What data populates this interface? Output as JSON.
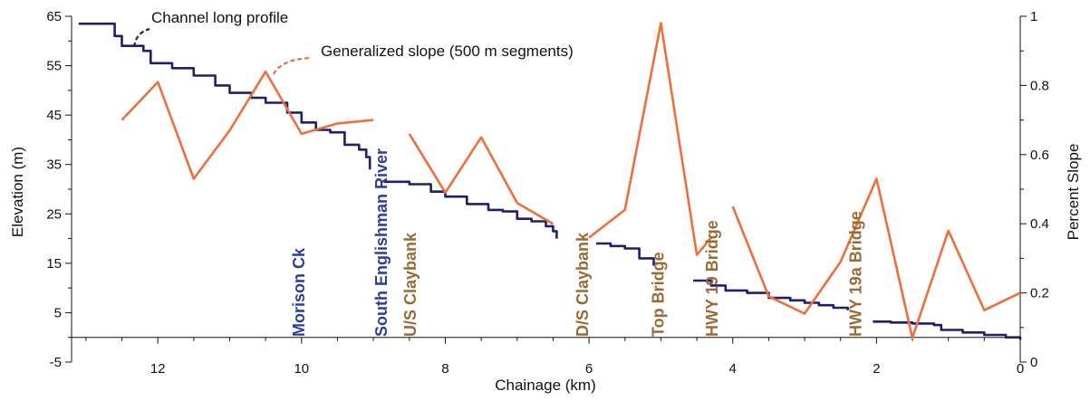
{
  "chart_data": {
    "type": "line",
    "xlabel": "Chainage (km)",
    "ylabel": "Elevation (m)",
    "y2label": "Percent Slope",
    "xlim": [
      13.2,
      0
    ],
    "ylim": [
      -5,
      65
    ],
    "y2lim": [
      0,
      1
    ],
    "x_ticks": [
      12,
      10,
      8,
      6,
      4,
      2,
      0
    ],
    "x_tick_labels": [
      "12",
      "10",
      "8",
      "6",
      "4",
      "2",
      "0"
    ],
    "y_ticks": [
      -5,
      5,
      15,
      25,
      35,
      45,
      55,
      65
    ],
    "y_tick_labels": [
      "-5",
      "5",
      "15",
      "25",
      "35",
      "45",
      "55",
      "65"
    ],
    "y2_ticks": [
      0,
      0.2,
      0.4,
      0.6,
      0.8,
      1
    ],
    "y2_tick_labels": [
      "0",
      "0.2",
      "0.4",
      "0.6",
      "0.8",
      "1"
    ],
    "grid": false,
    "legend_position": "top-left",
    "series": [
      {
        "name": "Channel long profile",
        "axis": "left",
        "color": "#1f1f6e",
        "segments": [
          [
            [
              13.1,
              63.5
            ],
            [
              12.6,
              61
            ],
            [
              12.5,
              59
            ],
            [
              12.2,
              58
            ],
            [
              12.1,
              55.5
            ],
            [
              11.8,
              54.5
            ],
            [
              11.5,
              53
            ],
            [
              11.2,
              51
            ],
            [
              11,
              49.5
            ],
            [
              10.7,
              48.5
            ],
            [
              10.5,
              47.5
            ],
            [
              10.2,
              45.5
            ],
            [
              10,
              43.5
            ],
            [
              9.8,
              42
            ],
            [
              9.6,
              41.5
            ],
            [
              9.4,
              39
            ],
            [
              9.2,
              38
            ],
            [
              9.1,
              36.5
            ],
            [
              9.05,
              34
            ]
          ],
          [
            [
              8.85,
              31.5
            ],
            [
              8.5,
              31
            ],
            [
              8.2,
              29.5
            ],
            [
              8,
              28.5
            ],
            [
              7.7,
              27
            ],
            [
              7.4,
              25.8
            ],
            [
              7.2,
              25.5
            ],
            [
              7,
              24
            ],
            [
              6.8,
              23.5
            ],
            [
              6.6,
              22.5
            ],
            [
              6.5,
              21.5
            ],
            [
              6.45,
              20
            ]
          ],
          [
            [
              5.9,
              19
            ],
            [
              5.7,
              18.5
            ],
            [
              5.5,
              18
            ],
            [
              5.3,
              16
            ],
            [
              5.1,
              14.5
            ]
          ],
          [
            [
              4.55,
              11.5
            ],
            [
              4.3,
              10.5
            ],
            [
              4.1,
              9.5
            ],
            [
              3.8,
              9
            ],
            [
              3.5,
              8
            ],
            [
              3.2,
              7.5
            ],
            [
              3,
              7
            ],
            [
              2.8,
              6.5
            ],
            [
              2.6,
              6
            ],
            [
              2.4,
              5.5
            ]
          ],
          [
            [
              2.05,
              3.2
            ],
            [
              1.8,
              3
            ],
            [
              1.5,
              2.8
            ],
            [
              1.2,
              2.5
            ],
            [
              1.1,
              1.5
            ],
            [
              0.8,
              1
            ],
            [
              0.5,
              0.5
            ],
            [
              0.2,
              0
            ],
            [
              0,
              -0.5
            ]
          ]
        ]
      },
      {
        "name": "Generalized slope (500 m segments)",
        "axis": "right",
        "color": "#ee6e3c",
        "segments": [
          [
            [
              12.5,
              0.7
            ],
            [
              12,
              0.81
            ],
            [
              11.5,
              0.53
            ],
            [
              11,
              0.67
            ],
            [
              10.5,
              0.84
            ],
            [
              10,
              0.66
            ],
            [
              9.5,
              0.69
            ],
            [
              9,
              0.7
            ]
          ],
          [
            [
              8.5,
              0.66
            ],
            [
              8,
              0.49
            ],
            [
              7.5,
              0.65
            ],
            [
              7,
              0.46
            ],
            [
              6.5,
              0.4
            ]
          ],
          [
            [
              6,
              0.36
            ],
            [
              5.5,
              0.44
            ],
            [
              5,
              0.98
            ],
            [
              4.5,
              0.31
            ],
            [
              4.3,
              0.36
            ]
          ],
          [
            [
              4,
              0.45
            ],
            [
              3.5,
              0.19
            ],
            [
              3,
              0.14
            ],
            [
              2.5,
              0.29
            ],
            [
              2,
              0.53
            ],
            [
              1.5,
              0.07
            ],
            [
              1,
              0.38
            ],
            [
              0.5,
              0.15
            ],
            [
              0,
              0.2
            ]
          ]
        ]
      }
    ],
    "annotations": [
      {
        "text": "Morison Ck",
        "x": 10.05,
        "color": "#2e3c9e"
      },
      {
        "text": "South Englishman River",
        "x": 8.9,
        "color": "#2e3c9e"
      },
      {
        "text": "U/S Claybank",
        "x": 8.5,
        "color": "#9a6a36"
      },
      {
        "text": "D/S Claybank",
        "x": 6.1,
        "color": "#9a6a36"
      },
      {
        "text": "Top Bridge",
        "x": 5.05,
        "color": "#9a6a36"
      },
      {
        "text": "HWY 19 Bridge",
        "x": 4.3,
        "color": "#9a6a36"
      },
      {
        "text": "HWY 19a Bridge",
        "x": 2.3,
        "color": "#9a6a36"
      }
    ]
  }
}
